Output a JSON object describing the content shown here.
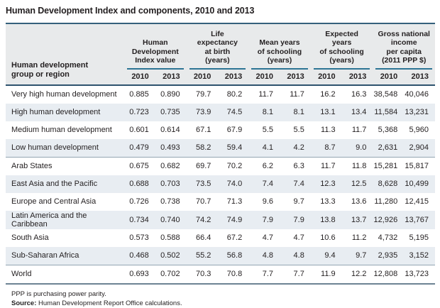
{
  "title": "Human Development Index and components, 2010 and 2013",
  "table": {
    "row_header_label": "Human development\ngroup or region",
    "groups": [
      {
        "label": "Human\nDevelopment\nIndex value"
      },
      {
        "label": "Life\nexpectancy\nat birth\n(years)"
      },
      {
        "label": "Mean years\nof schooling\n(years)"
      },
      {
        "label": "Expected years\nof schooling\n(years)"
      },
      {
        "label": "Gross national\nincome\nper capita\n(2011 PPP $)"
      }
    ],
    "years": [
      "2010",
      "2013"
    ],
    "rows": [
      {
        "label": "Very high human development",
        "values": [
          "0.885",
          "0.890",
          "79.7",
          "80.2",
          "11.7",
          "11.7",
          "16.2",
          "16.3",
          "38,548",
          "40,046"
        ]
      },
      {
        "label": "High human development",
        "values": [
          "0.723",
          "0.735",
          "73.9",
          "74.5",
          "8.1",
          "8.1",
          "13.1",
          "13.4",
          "11,584",
          "13,231"
        ]
      },
      {
        "label": "Medium human development",
        "values": [
          "0.601",
          "0.614",
          "67.1",
          "67.9",
          "5.5",
          "5.5",
          "11.3",
          "11.7",
          "5,368",
          "5,960"
        ]
      },
      {
        "label": "Low human development",
        "values": [
          "0.479",
          "0.493",
          "58.2",
          "59.4",
          "4.1",
          "4.2",
          "8.7",
          "9.0",
          "2,631",
          "2,904"
        ]
      },
      {
        "label": "Arab States",
        "values": [
          "0.675",
          "0.682",
          "69.7",
          "70.2",
          "6.2",
          "6.3",
          "11.7",
          "11.8",
          "15,281",
          "15,817"
        ]
      },
      {
        "label": "East Asia and the Pacific",
        "values": [
          "0.688",
          "0.703",
          "73.5",
          "74.0",
          "7.4",
          "7.4",
          "12.3",
          "12.5",
          "8,628",
          "10,499"
        ]
      },
      {
        "label": "Europe and Central Asia",
        "values": [
          "0.726",
          "0.738",
          "70.7",
          "71.3",
          "9.6",
          "9.7",
          "13.3",
          "13.6",
          "11,280",
          "12,415"
        ]
      },
      {
        "label": "Latin America and the Caribbean",
        "values": [
          "0.734",
          "0.740",
          "74.2",
          "74.9",
          "7.9",
          "7.9",
          "13.8",
          "13.7",
          "12,926",
          "13,767"
        ]
      },
      {
        "label": "South Asia",
        "values": [
          "0.573",
          "0.588",
          "66.4",
          "67.2",
          "4.7",
          "4.7",
          "10.6",
          "11.2",
          "4,732",
          "5,195"
        ]
      },
      {
        "label": "Sub-Saharan Africa",
        "values": [
          "0.468",
          "0.502",
          "55.2",
          "56.8",
          "4.8",
          "4.8",
          "9.4",
          "9.7",
          "2,935",
          "3,152"
        ]
      },
      {
        "label": "World",
        "values": [
          "0.693",
          "0.702",
          "70.3",
          "70.8",
          "7.7",
          "7.7",
          "11.9",
          "12.2",
          "12,808",
          "13,723"
        ]
      }
    ]
  },
  "footnotes": {
    "note": "PPP is purchasing power parity.",
    "source_label": "Source:",
    "source_text": " Human Development Report Office calculations."
  },
  "colors": {
    "table_top_border": "#35607c",
    "header_bottom_border": "#2e536e",
    "spanner_underline": "#2d7494",
    "header_background": "#e8eaeb",
    "row_stripe": "#e8edf2",
    "section_divider": "#93a5b1",
    "table_bottom_border": "#6d8393",
    "text": "#231f20"
  }
}
